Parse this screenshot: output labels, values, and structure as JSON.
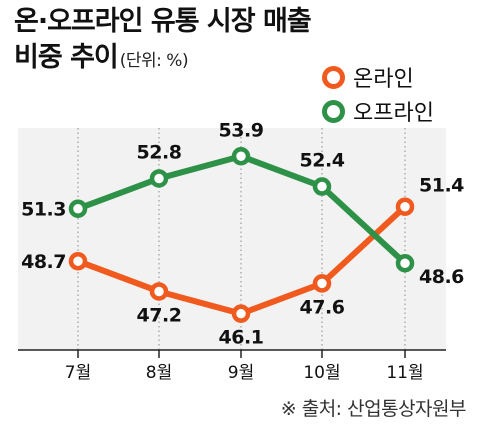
{
  "title": {
    "line1": "온·오프라인 유통 시장 매출",
    "line2": "비중 추이",
    "unit": "(단위: %)"
  },
  "legend": [
    {
      "label": "온라인",
      "color": "#f05a1e"
    },
    {
      "label": "오프라인",
      "color": "#2e9148"
    }
  ],
  "source": "※ 출처: 산업통상자원부",
  "colors": {
    "online": "#f05a1e",
    "offline": "#2e9148",
    "plot_background": "#f2f2f2",
    "axis": "#222222",
    "text": "#111111"
  },
  "chart_data": {
    "type": "line",
    "categories": [
      "7월",
      "8월",
      "9월",
      "10월",
      "11월"
    ],
    "series": [
      {
        "name": "온라인",
        "values": [
          48.7,
          47.2,
          46.1,
          47.6,
          51.4
        ]
      },
      {
        "name": "오프라인",
        "values": [
          51.3,
          52.8,
          53.9,
          52.4,
          48.6
        ]
      }
    ],
    "ylim": [
      44.3,
      55.3
    ],
    "grid": "vertical dotted lines at each month",
    "legend_position": "top-right",
    "xlabel": "",
    "ylabel": ""
  }
}
